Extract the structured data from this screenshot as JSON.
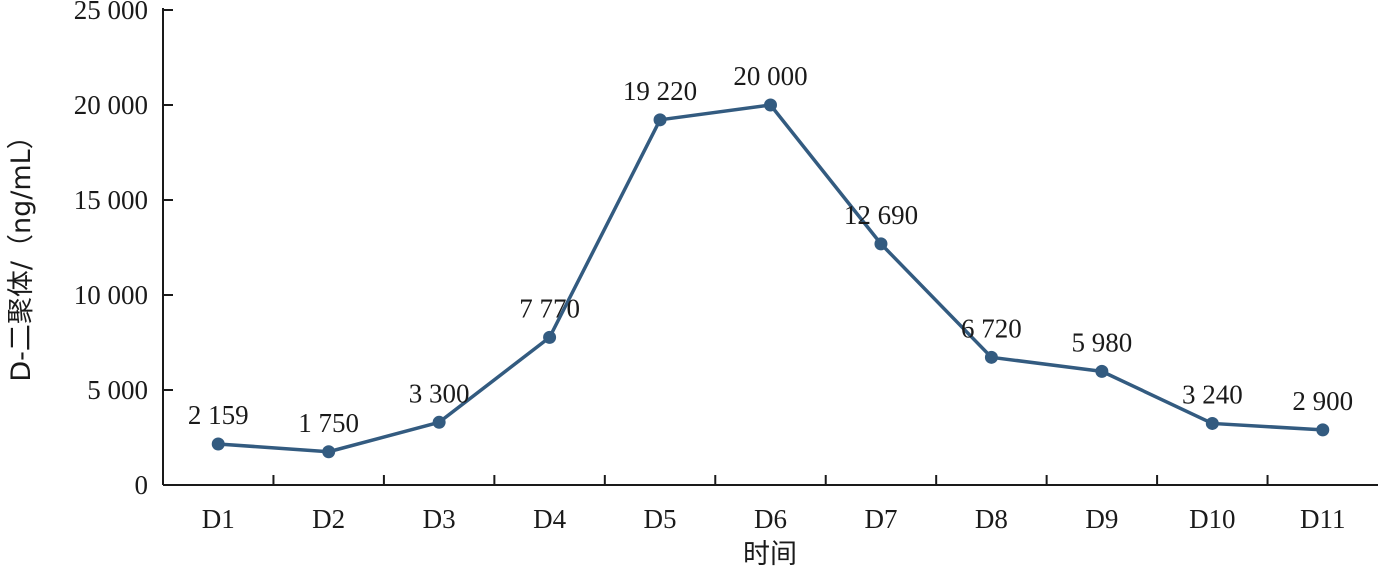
{
  "chart_data": {
    "type": "line",
    "xlabel": "时间",
    "ylabel": "D-二聚体/（ng/mL）",
    "ylim": [
      0,
      25000
    ],
    "yticks": [
      0,
      5000,
      10000,
      15000,
      20000,
      25000
    ],
    "ytick_labels": [
      "0",
      "5 000",
      "10 000",
      "15 000",
      "20 000",
      "25 000"
    ],
    "categories": [
      "D1",
      "D2",
      "D3",
      "D4",
      "D5",
      "D6",
      "D7",
      "D8",
      "D9",
      "D10",
      "D11"
    ],
    "series": [
      {
        "values": [
          2159,
          1750,
          3300,
          7770,
          19220,
          20000,
          12690,
          6720,
          5980,
          3240,
          2900
        ],
        "labels": [
          "2 159",
          "1 750",
          "3 300",
          "7 770",
          "19 220",
          "20 000",
          "12 690",
          "6 720",
          "5 980",
          "3 240",
          "2 900"
        ],
        "color": "#335b80"
      }
    ],
    "grid": false,
    "legend": "none"
  }
}
